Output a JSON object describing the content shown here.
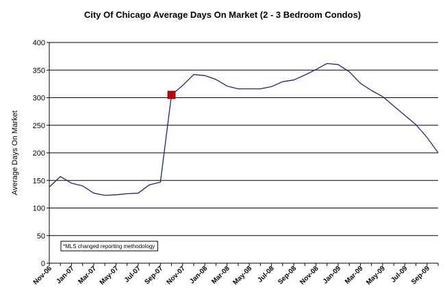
{
  "chart_data": {
    "type": "line",
    "title": "City Of Chicago Average Days On Market (2 - 3 Bedroom Condos)",
    "xlabel": "",
    "ylabel": "Average Days On Market",
    "ylim": [
      0,
      400
    ],
    "yticks": [
      0,
      50,
      100,
      150,
      200,
      250,
      300,
      350,
      400
    ],
    "grid": "horizontal",
    "x": [
      "Nov-06",
      "Dec-06",
      "Jan-07",
      "Feb-07",
      "Mar-07",
      "Apr-07",
      "May-07",
      "Jun-07",
      "Jul-07",
      "Aug-07",
      "Sep-07",
      "Oct-07",
      "Nov-07",
      "Dec-07",
      "Jan-08",
      "Feb-08",
      "Mar-08",
      "Apr-08",
      "May-08",
      "Jun-08",
      "Jul-08",
      "Aug-08",
      "Sep-08",
      "Oct-08",
      "Nov-08",
      "Dec-08",
      "Jan-09",
      "Feb-09",
      "Mar-09",
      "Apr-09",
      "May-09",
      "Jun-09",
      "Jul-09",
      "Aug-09",
      "Sep-09",
      "Oct-09"
    ],
    "xtick_labels": [
      "Nov-06",
      "Jan-07",
      "Mar-07",
      "May-07",
      "Jul-07",
      "Sep-07",
      "Nov-07",
      "Jan-08",
      "Mar-08",
      "May-08",
      "Jul-08",
      "Sep-08",
      "Nov-08",
      "Jan-09",
      "Mar-09",
      "May-09",
      "Jul-09",
      "Sep-09"
    ],
    "series": [
      {
        "color": "#1a2a6e",
        "values": [
          138,
          157,
          145,
          140,
          127,
          123,
          124,
          126,
          127,
          142,
          147,
          305,
          322,
          342,
          340,
          333,
          321,
          316,
          316,
          316,
          320,
          329,
          332,
          341,
          351,
          362,
          360,
          347,
          326,
          313,
          302,
          285,
          268,
          251,
          228,
          200
        ]
      }
    ],
    "marker": {
      "x": "Oct-07",
      "y": 305,
      "color": "#cc0000"
    },
    "annotation": "*MLS changed reporting methodology"
  }
}
